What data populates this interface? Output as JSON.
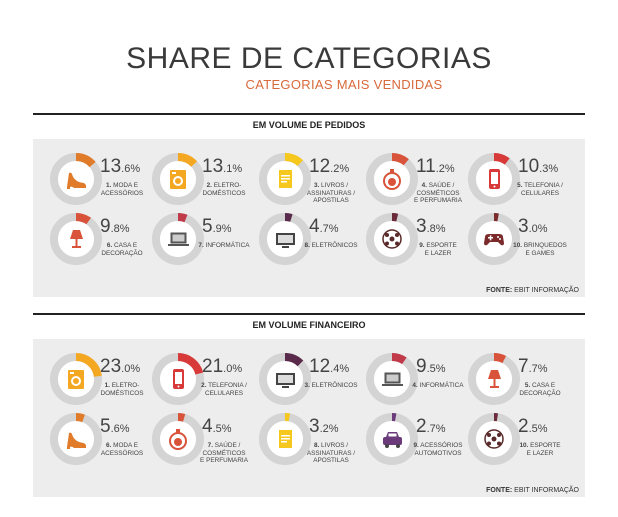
{
  "header": {
    "title": "SHARE DE CATEGORIAS",
    "subtitle": "CATEGORIAS MAIS VENDIDAS"
  },
  "sections": [
    {
      "heading": "EM VOLUME DE PEDIDOS",
      "source_label": "FONTE:",
      "source_name": "EBIT INFORMAÇÃO",
      "items": [
        {
          "rank": "1.",
          "label": "MODA E\nACESSÓRIOS",
          "pct_int": "13",
          "pct_dec": ".6%",
          "value": 0.136,
          "color": "#e07b2a",
          "icon": "shoe-icon"
        },
        {
          "rank": "2.",
          "label": "ELETRO-\nDOMÉSTICOS",
          "pct_int": "13",
          "pct_dec": ".1%",
          "value": 0.131,
          "color": "#f4a822",
          "icon": "washing-machine-icon"
        },
        {
          "rank": "3.",
          "label": "LIVROS /\nASSINATURAS /\nAPOSTILAS",
          "pct_int": "12",
          "pct_dec": ".2%",
          "value": 0.122,
          "color": "#f6c81e",
          "icon": "book-icon"
        },
        {
          "rank": "4.",
          "label": "SAÚDE /\nCOSMÉTICOS\nE PERFUMARIA",
          "pct_int": "11",
          "pct_dec": ".2%",
          "value": 0.112,
          "color": "#d8533a",
          "icon": "perfume-icon"
        },
        {
          "rank": "5.",
          "label": "TELEFONIA /\nCELULARES",
          "pct_int": "10",
          "pct_dec": ".3%",
          "value": 0.103,
          "color": "#d83a3a",
          "icon": "phone-icon"
        },
        {
          "rank": "6.",
          "label": "CASA E\nDECORAÇÃO",
          "pct_int": "9",
          "pct_dec": ".8%",
          "value": 0.098,
          "color": "#d8533a",
          "icon": "lamp-icon"
        },
        {
          "rank": "7.",
          "label": "INFORMÁTICA",
          "pct_int": "5",
          "pct_dec": ".9%",
          "value": 0.059,
          "color": "#c03a4a",
          "icon": "laptop-icon"
        },
        {
          "rank": "8.",
          "label": "ELETRÔNICOS",
          "pct_int": "4",
          "pct_dec": ".7%",
          "value": 0.047,
          "color": "#5a2a4a",
          "icon": "tv-icon"
        },
        {
          "rank": "9.",
          "label": "ESPORTE\nE LAZER",
          "pct_int": "3",
          "pct_dec": ".8%",
          "value": 0.038,
          "color": "#6a2a3a",
          "icon": "ball-icon"
        },
        {
          "rank": "10.",
          "label": "BRINQUEDOS\nE GAMES",
          "pct_int": "3",
          "pct_dec": ".0%",
          "value": 0.03,
          "color": "#7a2a2a",
          "icon": "gamepad-icon"
        }
      ]
    },
    {
      "heading": "EM VOLUME FINANCEIRO",
      "source_label": "FONTE:",
      "source_name": "EBIT INFORMAÇÃO",
      "items": [
        {
          "rank": "1.",
          "label": "ELETRO-\nDOMÉSTICOS",
          "pct_int": "23",
          "pct_dec": ".0%",
          "value": 0.23,
          "color": "#f4a822",
          "icon": "washing-machine-icon"
        },
        {
          "rank": "2.",
          "label": "TELEFONIA /\nCELULARES",
          "pct_int": "21",
          "pct_dec": ".0%",
          "value": 0.21,
          "color": "#d83a3a",
          "icon": "phone-icon"
        },
        {
          "rank": "3.",
          "label": "ELETRÔNICOS",
          "pct_int": "12",
          "pct_dec": ".4%",
          "value": 0.124,
          "color": "#5a2a4a",
          "icon": "tv-icon"
        },
        {
          "rank": "4.",
          "label": "INFORMÁTICA",
          "pct_int": "9",
          "pct_dec": ".5%",
          "value": 0.095,
          "color": "#c03a4a",
          "icon": "laptop-icon"
        },
        {
          "rank": "5.",
          "label": "CASA E\nDECORAÇÃO",
          "pct_int": "7",
          "pct_dec": ".7%",
          "value": 0.077,
          "color": "#d8533a",
          "icon": "lamp-icon"
        },
        {
          "rank": "6.",
          "label": "MODA E\nACESSÓRIOS",
          "pct_int": "5",
          "pct_dec": ".6%",
          "value": 0.056,
          "color": "#e07b2a",
          "icon": "shoe-icon"
        },
        {
          "rank": "7.",
          "label": "SAÚDE /\nCOSMÉTICOS\nE PERFUMARIA",
          "pct_int": "4",
          "pct_dec": ".5%",
          "value": 0.045,
          "color": "#d8533a",
          "icon": "perfume-icon"
        },
        {
          "rank": "8.",
          "label": "LIVROS /\nASSINATURAS /\nAPOSTILAS",
          "pct_int": "3",
          "pct_dec": ".2%",
          "value": 0.032,
          "color": "#f6c81e",
          "icon": "book-icon"
        },
        {
          "rank": "9.",
          "label": "ACESSÓRIOS\nAUTOMOTIVOS",
          "pct_int": "2",
          "pct_dec": ".7%",
          "value": 0.027,
          "color": "#6a3a7a",
          "icon": "car-icon"
        },
        {
          "rank": "10.",
          "label": "ESPORTE\nE LAZER",
          "pct_int": "2",
          "pct_dec": ".5%",
          "value": 0.025,
          "color": "#6a2a3a",
          "icon": "ball-icon"
        }
      ]
    }
  ]
}
